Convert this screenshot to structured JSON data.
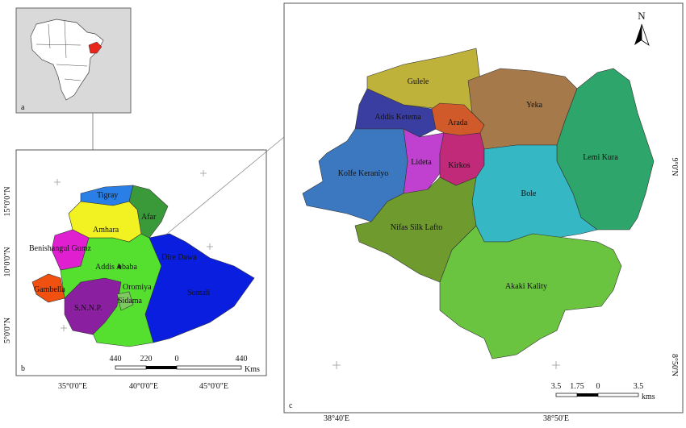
{
  "panel_a": {
    "label": "a"
  },
  "panel_b": {
    "label": "b",
    "regions": [
      "Tigray",
      "Afar",
      "Amhara",
      "Benishangul Gumz",
      "Addis Ababa",
      "Dire Dawa",
      "Oromiya",
      "Somali",
      "Gambella",
      "S.N.N.P.",
      "Sidama"
    ],
    "lat_labels": [
      "15°0'0\"N",
      "10°0'0\"N",
      "5°0'0\"N"
    ],
    "lon_labels": [
      "35°0'0\"E",
      "40°0'0\"E",
      "45°0'0\"E"
    ],
    "scale": {
      "ticks": [
        "440",
        "220",
        "0",
        "440"
      ],
      "unit": "Kms"
    }
  },
  "panel_c": {
    "label": "c",
    "north": "N",
    "subcities": [
      "Gulele",
      "Yeka",
      "Addis Ketema",
      "Arada",
      "Lideta",
      "Kirkos",
      "Kolfe Keraniyo",
      "Lemi Kura",
      "Bole",
      "Nifas Silk Lafto",
      "Akaki Kality"
    ],
    "lat_labels": [
      "9°0'N",
      "8°50'N"
    ],
    "lon_labels": [
      "38°40'E",
      "38°50'E"
    ],
    "scale": {
      "ticks": [
        "3.5",
        "1.75",
        "0",
        "3.5"
      ],
      "unit": "kms"
    }
  }
}
